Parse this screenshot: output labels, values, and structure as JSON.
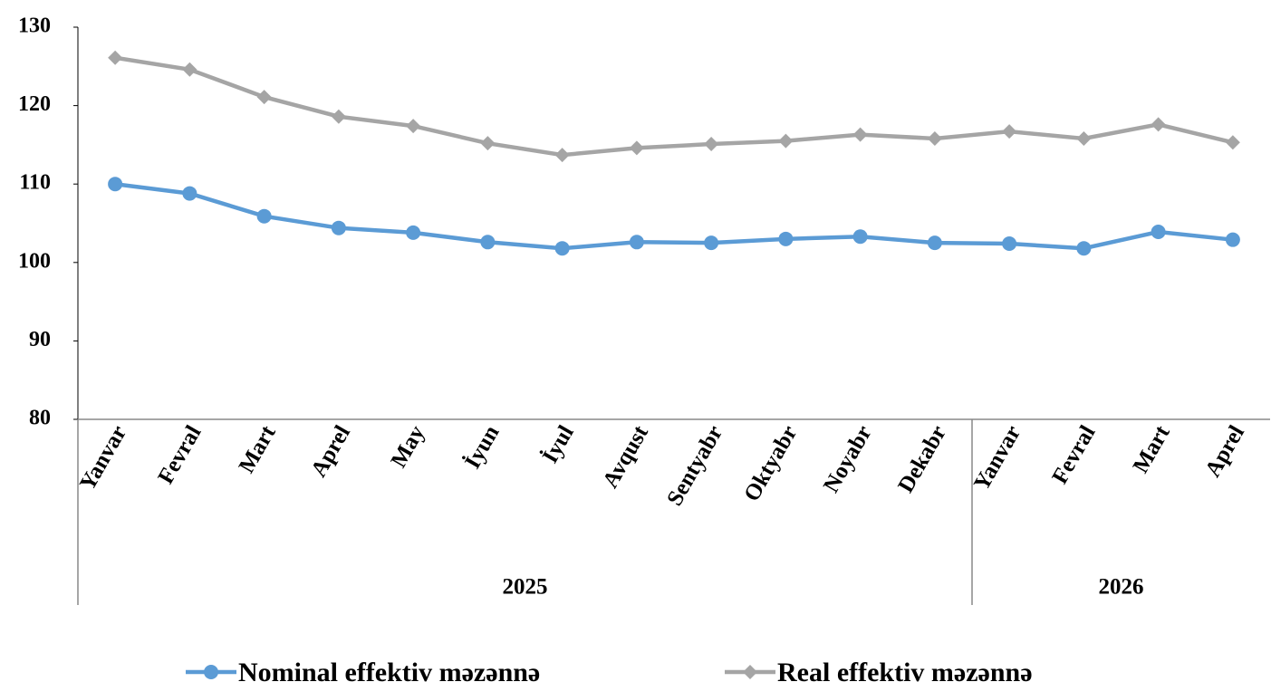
{
  "chart_data": {
    "type": "line",
    "groups": [
      {
        "label": "2025",
        "categories": [
          "Yanvar",
          "Fevral",
          "Mart",
          "Aprel",
          "May",
          "İyun",
          "İyul",
          "Avqust",
          "Sentyabr",
          "Oktyabr",
          "Noyabr",
          "Dekabr"
        ]
      },
      {
        "label": "2026",
        "categories": [
          "Yanvar",
          "Fevral",
          "Mart",
          "Aprel"
        ]
      }
    ],
    "series": [
      {
        "name": "Nominal effektiv məzənnə",
        "color": "#5b9bd5",
        "marker": "circle",
        "values": [
          110.0,
          108.8,
          105.9,
          104.4,
          103.8,
          102.6,
          101.8,
          102.6,
          102.5,
          103.0,
          103.3,
          102.5,
          102.4,
          101.8,
          103.9,
          102.9
        ]
      },
      {
        "name": "Real effektiv məzənnə",
        "color": "#a5a5a5",
        "marker": "diamond",
        "values": [
          126.1,
          124.6,
          121.1,
          118.6,
          117.4,
          115.2,
          113.7,
          114.6,
          115.1,
          115.5,
          116.3,
          115.8,
          116.7,
          115.8,
          117.6,
          115.3
        ]
      }
    ],
    "ylim": [
      80,
      130
    ],
    "yticks": [
      80,
      90,
      100,
      110,
      120,
      130
    ],
    "grid": false,
    "legend": "bottom"
  }
}
